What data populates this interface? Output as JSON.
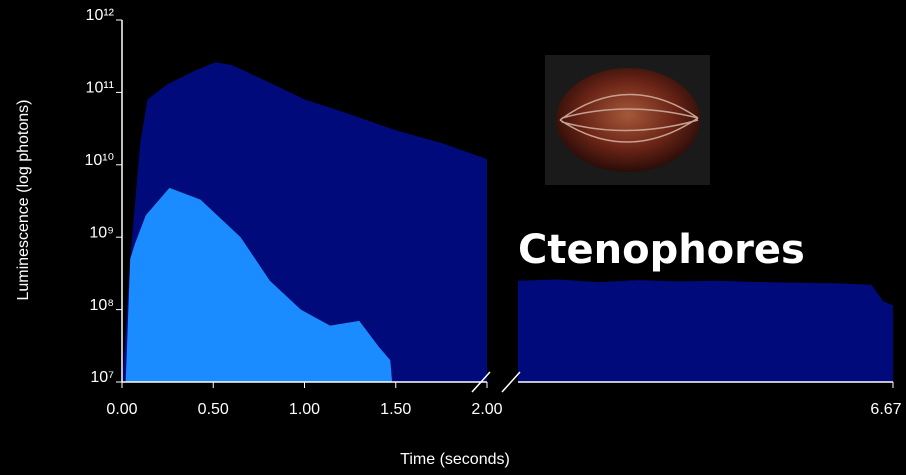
{
  "chart_data": {
    "type": "area",
    "annotation": "Ctenophores",
    "xlabel": "Time (seconds)",
    "ylabel": "Luminescence (log photons)",
    "log_y": true,
    "xlim": [
      0,
      2
    ],
    "xticks": [
      {
        "value": 0,
        "label": "0.00"
      },
      {
        "value": 0.5,
        "label": "0.50"
      },
      {
        "value": 1,
        "label": "1.00"
      },
      {
        "value": 1.5,
        "label": "1.50"
      },
      {
        "value": 2,
        "label": "2.00"
      }
    ],
    "x2lim": [
      2,
      6.67
    ],
    "x2ticks": [
      6.67
    ],
    "ylim": [
      10000000,
      1000000000000
    ],
    "yticks": [
      {
        "value": 10000000,
        "label": "10⁷"
      },
      {
        "value": 100000000,
        "label": "10⁸"
      },
      {
        "value": 1000000000,
        "label": "10⁹"
      },
      {
        "value": 10000000000,
        "label": "10¹⁰"
      },
      {
        "value": 100000000000,
        "label": "10¹¹"
      },
      {
        "value": 1000000000000,
        "label": "10¹²"
      }
    ],
    "series": [
      {
        "color": "#000a7a",
        "x": [
          0,
          0.02,
          0.045,
          0.1,
          0.14,
          0.25,
          0.4,
          0.51,
          0.6,
          0.8,
          1.0,
          1.2,
          1.5,
          1.75,
          2.0
        ],
        "values": [
          10000000,
          50000000,
          500000000,
          20000000000,
          80000000000,
          130000000000,
          200000000000,
          260000000000,
          240000000000,
          140000000000,
          80000000000,
          55000000000,
          30000000000,
          20000000000,
          12000000000
        ]
      },
      {
        "color": "#1a8cff",
        "x": [
          0.02,
          0.045,
          0.07,
          0.13,
          0.26,
          0.43,
          0.65,
          0.81,
          0.98,
          1.14,
          1.3,
          1.41,
          1.47,
          1.48
        ],
        "values": [
          10000000,
          500000000,
          800000000,
          2000000000,
          4800000000,
          3300000000,
          1000000000,
          250000000,
          100000000,
          60000000,
          70000000,
          30000000,
          20000000,
          10000000
        ]
      },
      {
        "color": "#000a7a",
        "axis": "x2",
        "x": [
          2.0,
          2.5,
          3.0,
          3.5,
          4.0,
          4.5,
          5.0,
          5.5,
          6.0,
          6.4,
          6.55,
          6.67
        ],
        "values": [
          250000000,
          260000000,
          240000000,
          255000000,
          245000000,
          250000000,
          240000000,
          235000000,
          230000000,
          220000000,
          130000000,
          115000000
        ]
      }
    ]
  }
}
